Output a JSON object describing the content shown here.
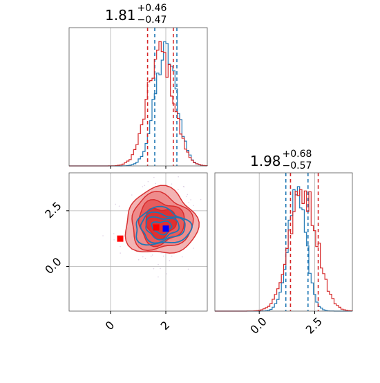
{
  "chart_data": [
    {
      "type": "histogram",
      "panel": "top-left",
      "title": {
        "value": "1.81",
        "plus": "+0.46",
        "minus": "−0.47"
      },
      "xlim": [
        -1.5,
        3.5
      ],
      "ylim": [
        0,
        1
      ],
      "xticks": [
        0,
        2
      ],
      "grid": true,
      "series": [
        {
          "color": "#1f77b4",
          "mean": 2.0,
          "std": 0.4,
          "quantile_lines": [
            1.6,
            2.4
          ]
        },
        {
          "color": "#d62728",
          "mean": 1.81,
          "std": 0.47,
          "quantile_lines": [
            1.34,
            2.27
          ]
        }
      ]
    },
    {
      "type": "contour",
      "panel": "bottom-left",
      "xlim": [
        -1.5,
        3.5
      ],
      "ylim": [
        -2.0,
        4.2
      ],
      "xticks": [
        "0",
        "2"
      ],
      "yticks": [
        "0.0",
        "2.5"
      ],
      "grid": true,
      "red_center": [
        1.81,
        1.98
      ],
      "blue_center": [
        2.0,
        1.7
      ],
      "markers": [
        {
          "shape": "square",
          "color": "#ff0000",
          "x": 0.35,
          "y": 1.25
        },
        {
          "shape": "square",
          "color": "#0000ff",
          "x": 2.0,
          "y": 1.7
        },
        {
          "shape": "square",
          "color": "#ff0000",
          "x": 1.65,
          "y": 1.75
        }
      ]
    },
    {
      "type": "histogram",
      "panel": "bottom-right",
      "title": {
        "value": "1.98",
        "plus": "+0.68",
        "minus": "−0.57"
      },
      "xlim": [
        -2.0,
        4.2
      ],
      "ylim": [
        0,
        1
      ],
      "xticks": [
        "0.0",
        "2.5"
      ],
      "grid": true,
      "series": [
        {
          "color": "#1f77b4",
          "mean": 1.7,
          "std": 0.4,
          "quantile_lines": [
            1.2,
            2.2
          ]
        },
        {
          "color": "#d62728",
          "mean": 1.98,
          "std": 0.62,
          "quantile_lines": [
            1.41,
            2.66
          ]
        }
      ]
    }
  ],
  "colors": {
    "blue": "#1f77b4",
    "red": "#d62728",
    "grid": "#b0b0b0",
    "axes": "#000000"
  }
}
